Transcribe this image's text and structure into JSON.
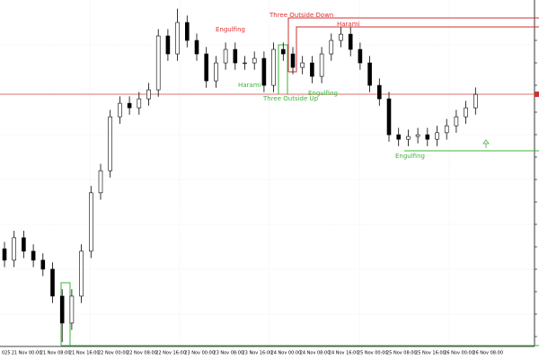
{
  "chart_data": {
    "type": "candlestick",
    "categories": [
      "025",
      "21 Nov 00:00",
      null,
      null,
      "21 Nov 08:00",
      null,
      null,
      "21 Nov 16:00",
      null,
      null,
      "22 Nov 00:00",
      null,
      null,
      "22 Nov 08:00",
      null,
      null,
      "22 Nov 16:00",
      null,
      null,
      "23 Nov 00:00",
      null,
      null,
      "23 Nov 08:00",
      null,
      null,
      "23 Nov 16:00",
      null,
      null,
      "24 Nov 00:00",
      null,
      null,
      "24 Nov 08:00",
      null,
      null,
      "24 Nov 16:00",
      null,
      null,
      "25 Nov 00:00",
      null,
      null,
      "25 Nov 08:00",
      null,
      null,
      "25 Nov 16:00",
      null,
      null,
      "26 Nov 00:00",
      null,
      null,
      "26 Nov 08:00"
    ],
    "open": [
      28,
      24.7,
      31.2,
      27.3,
      24.7,
      22.1,
      14.3,
      6.5,
      14.3,
      27.3,
      44.2,
      50.6,
      66.2,
      70.1,
      68.8,
      71.4,
      74.0,
      89.6,
      84.4,
      93.5,
      88.3,
      84.4,
      76.6,
      81.8,
      85.7,
      81.8,
      81.8,
      83.1,
      75.3,
      85.7,
      84.4,
      80.5,
      81.8,
      77.9,
      84.4,
      88.3,
      90.1,
      85.7,
      81.8,
      75.3,
      71.4,
      61.0,
      59.7,
      60.5,
      61.0,
      59.7,
      61.6,
      63.6,
      66.2,
      68.8
    ],
    "high": [
      30,
      33.2,
      33.2,
      29.3,
      26.7,
      24.1,
      16.3,
      16.3,
      29.3,
      46.2,
      52.6,
      68.2,
      72.1,
      72.1,
      73.4,
      76,
      91.6,
      91.6,
      97.5,
      95.5,
      90.3,
      86.4,
      83.8,
      87.7,
      87.7,
      83.8,
      85.1,
      85.1,
      87.7,
      87.7,
      86.4,
      83.8,
      83.8,
      86.4,
      90.3,
      92.1,
      92.1,
      87.7,
      83.8,
      77.3,
      73.4,
      63,
      62.5,
      63,
      63,
      63.6,
      65.6,
      68.2,
      70.8,
      74.7
    ],
    "low": [
      22.7,
      22.7,
      25.3,
      22.7,
      20.1,
      12.3,
      1,
      4.5,
      12.3,
      25.3,
      42.2,
      48.6,
      64.2,
      66.8,
      66.8,
      69.4,
      72,
      82.4,
      82.4,
      86.3,
      82.4,
      74.6,
      74.6,
      79.8,
      79.8,
      79.8,
      79.8,
      73.3,
      73.3,
      82.4,
      78.5,
      78.5,
      75.9,
      75.9,
      82.4,
      86.3,
      83.7,
      79.8,
      73.3,
      69.4,
      59,
      57.7,
      57.7,
      58.5,
      57.7,
      57.7,
      59.6,
      61.6,
      64.2,
      66.8
    ],
    "close": [
      24.7,
      31.2,
      27.3,
      24.7,
      22.1,
      14.3,
      6.5,
      14.3,
      27.3,
      44.2,
      50.6,
      66.2,
      70.1,
      68.8,
      71.4,
      74.0,
      89.6,
      84.4,
      93.5,
      88.3,
      84.4,
      76.6,
      81.8,
      85.7,
      81.8,
      81.8,
      83.1,
      75.3,
      85.7,
      84.4,
      80.5,
      81.8,
      77.9,
      84.4,
      88.3,
      90.1,
      85.7,
      81.8,
      75.3,
      71.4,
      61.0,
      59.7,
      60.5,
      61.0,
      59.7,
      61.6,
      63.6,
      66.2,
      68.8,
      72.7
    ],
    "ylim": [
      0,
      100
    ],
    "annotations": [
      {
        "text": "Engulfing",
        "color": "#e03030"
      },
      {
        "text": "Three Outside Down",
        "color": "#e03030"
      },
      {
        "text": "Harami",
        "color": "#e03030"
      },
      {
        "text": "Harami",
        "color": "#3cb33c"
      },
      {
        "text": "Three Outside Up",
        "color": "#3cb33c"
      },
      {
        "text": "Engulfing",
        "color": "#3cb33c"
      },
      {
        "text": "Engulfing",
        "color": "#3cb33c"
      }
    ]
  }
}
